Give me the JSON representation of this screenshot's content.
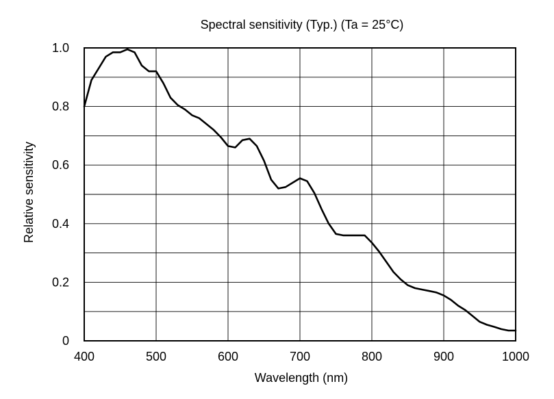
{
  "chart_data": {
    "type": "line",
    "title": "Spectral sensitivity (Typ.) (Ta = 25°C)",
    "xlabel": "Wavelength (nm)",
    "ylabel": "Relative sensitivity",
    "xlim": [
      400,
      1000
    ],
    "ylim": [
      0,
      1.0
    ],
    "x_ticks": [
      400,
      500,
      600,
      700,
      800,
      900,
      1000
    ],
    "x_tick_labels": [
      "400",
      "500",
      "600",
      "700",
      "800",
      "900",
      "1000"
    ],
    "y_ticks": [
      0,
      0.2,
      0.4,
      0.6,
      0.8,
      1.0
    ],
    "y_tick_labels": [
      "0",
      "0.2",
      "0.4",
      "0.6",
      "0.8",
      "1.0"
    ],
    "grid": true,
    "minor_y_gridlines": [
      0.1,
      0.3,
      0.5,
      0.7,
      0.9
    ],
    "line_color": "#000000",
    "series": [
      {
        "x": [
          400,
          410,
          420,
          430,
          440,
          450,
          460,
          470,
          480,
          490,
          500,
          510,
          520,
          530,
          540,
          550,
          560,
          570,
          580,
          590,
          600,
          610,
          620,
          630,
          640,
          650,
          660,
          670,
          680,
          690,
          700,
          710,
          720,
          730,
          740,
          750,
          760,
          770,
          780,
          790,
          800,
          810,
          820,
          830,
          840,
          850,
          860,
          870,
          880,
          890,
          900,
          910,
          920,
          930,
          940,
          950,
          960,
          970,
          980,
          990,
          1000
        ],
        "values": [
          0.8,
          0.89,
          0.93,
          0.97,
          0.985,
          0.985,
          0.995,
          0.985,
          0.94,
          0.92,
          0.92,
          0.88,
          0.83,
          0.805,
          0.79,
          0.77,
          0.76,
          0.74,
          0.72,
          0.695,
          0.665,
          0.66,
          0.685,
          0.69,
          0.665,
          0.615,
          0.55,
          0.52,
          0.525,
          0.54,
          0.555,
          0.545,
          0.505,
          0.45,
          0.4,
          0.365,
          0.36,
          0.36,
          0.36,
          0.36,
          0.335,
          0.305,
          0.27,
          0.235,
          0.21,
          0.19,
          0.18,
          0.175,
          0.17,
          0.165,
          0.155,
          0.14,
          0.12,
          0.105,
          0.085,
          0.065,
          0.055,
          0.048,
          0.04,
          0.035,
          0.035
        ]
      }
    ]
  }
}
